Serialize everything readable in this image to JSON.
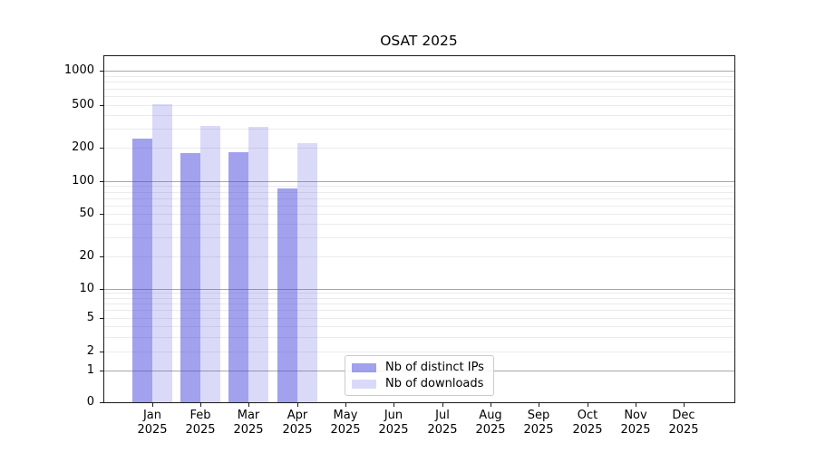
{
  "chart_data": {
    "type": "bar",
    "title": "OSAT 2025",
    "categories": [
      "Jan",
      "Feb",
      "Mar",
      "Apr",
      "May",
      "Jun",
      "Jul",
      "Aug",
      "Sep",
      "Oct",
      "Nov",
      "Dec"
    ],
    "category_year": "2025",
    "series": [
      {
        "name": "Nb of distinct IPs",
        "color": "#4444dd",
        "alpha": 0.5,
        "values": [
          240,
          178,
          182,
          86,
          0,
          0,
          0,
          0,
          0,
          0,
          0,
          0
        ]
      },
      {
        "name": "Nb of downloads",
        "color": "#4444dd",
        "alpha": 0.2,
        "values": [
          505,
          320,
          310,
          220,
          0,
          0,
          0,
          0,
          0,
          0,
          0,
          0
        ]
      }
    ],
    "yscale": "log-with-zero",
    "y_ticks": [
      0,
      1,
      2,
      5,
      10,
      20,
      50,
      100,
      200,
      500,
      1000
    ],
    "ylim": [
      0,
      1400
    ],
    "grid": "both",
    "grid_major_at": [
      1,
      10,
      100,
      1000
    ],
    "legend_position": "bottom-center"
  },
  "colors": {
    "bar_dark_rendered": "#a2a2ef",
    "bar_light_rendered": "#dadaf8",
    "grid_minor": "#ebebeb",
    "grid_major": "#a8a8a8",
    "spine": "#1a1a1a"
  }
}
